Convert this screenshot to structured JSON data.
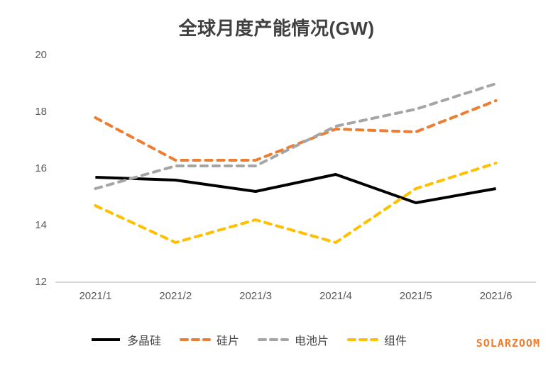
{
  "chart_data": {
    "type": "line",
    "title": "全球月度产能情况(GW)",
    "categories": [
      "2021/1",
      "2021/2",
      "2021/3",
      "2021/4",
      "2021/5",
      "2021/6"
    ],
    "series": [
      {
        "name": "多晶硅",
        "color": "#000000",
        "style": "solid",
        "values": [
          15.7,
          15.6,
          15.2,
          15.8,
          14.8,
          15.3
        ]
      },
      {
        "name": "硅片",
        "color": "#ED7D31",
        "style": "dashed",
        "values": [
          17.8,
          16.3,
          16.3,
          17.4,
          17.3,
          18.4
        ]
      },
      {
        "name": "电池片",
        "color": "#A5A5A5",
        "style": "dashed",
        "values": [
          15.3,
          16.1,
          16.1,
          17.5,
          18.1,
          19.0
        ]
      },
      {
        "name": "组件",
        "color": "#FFC000",
        "style": "dashed",
        "values": [
          14.7,
          13.4,
          14.2,
          13.4,
          15.3,
          16.2
        ]
      }
    ],
    "xlabel": "",
    "ylabel": "",
    "ylim": [
      12,
      20
    ],
    "yticks": [
      12,
      14,
      16,
      18,
      20
    ],
    "grid": false,
    "legend_position": "bottom"
  },
  "watermark": "SOLARZOOM",
  "colors": {
    "title": "#404040",
    "tick_label": "#595959",
    "axis_line": "#d9d9d9",
    "watermark": "#ED7D31"
  }
}
